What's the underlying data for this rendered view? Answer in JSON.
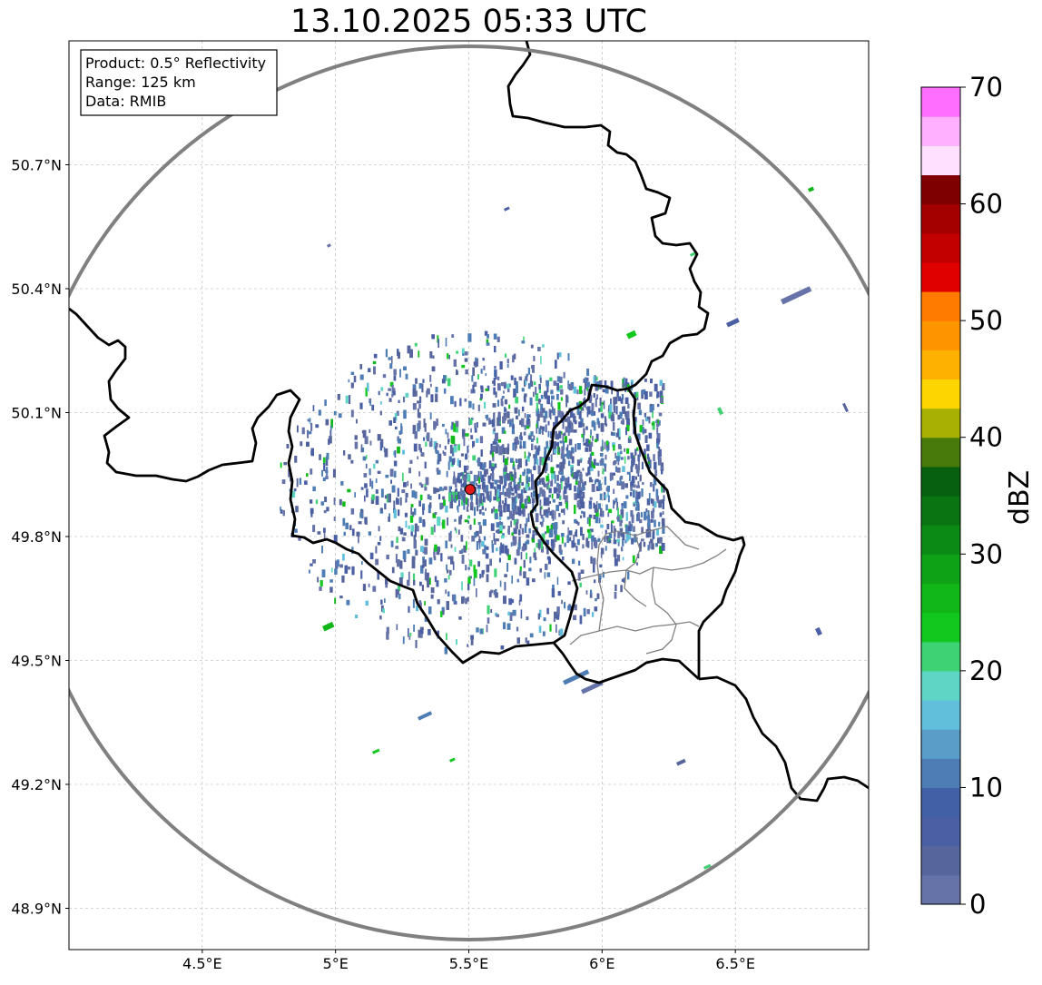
{
  "title": "13.10.2025 05:33 UTC",
  "info_box": {
    "product": "Product: 0.5° Reflectivity",
    "range": "Range: 125 km",
    "data": "Data: RMIB"
  },
  "map": {
    "lon_range": [
      4.0,
      7.0
    ],
    "lat_range": [
      48.8,
      51.0
    ],
    "x_ticks": [
      {
        "value": 4.5,
        "label": "4.5°E"
      },
      {
        "value": 5.0,
        "label": "5°E"
      },
      {
        "value": 5.5,
        "label": "5.5°E"
      },
      {
        "value": 6.0,
        "label": "6°E"
      },
      {
        "value": 6.5,
        "label": "6.5°E"
      }
    ],
    "y_ticks": [
      {
        "value": 48.9,
        "label": "48.9°N"
      },
      {
        "value": 49.2,
        "label": "49.2°N"
      },
      {
        "value": 49.5,
        "label": "49.5°N"
      },
      {
        "value": 49.8,
        "label": "49.8°N"
      },
      {
        "value": 50.1,
        "label": "50.1°N"
      },
      {
        "value": 50.4,
        "label": "50.4°N"
      },
      {
        "value": 50.7,
        "label": "50.7°N"
      }
    ],
    "radar_site": {
      "lon": 5.505,
      "lat": 49.914,
      "color": "#e31a1c"
    },
    "range_ring_color": "#808080",
    "border_color": "#000000",
    "admin_border_color": "#808080",
    "grid_color": "#b0b0b0"
  },
  "colorbar": {
    "label": "dBZ",
    "min": 0,
    "max": 70,
    "step": 2.5,
    "tick_labels": [
      "0",
      "10",
      "20",
      "30",
      "40",
      "50",
      "60",
      "70"
    ],
    "tick_values": [
      0,
      10,
      20,
      30,
      40,
      50,
      60,
      70
    ],
    "colors": [
      "#6673a8",
      "#56669d",
      "#4a5fa4",
      "#4260a6",
      "#4e7db5",
      "#5a9dc8",
      "#61bfdc",
      "#5fd5c5",
      "#3ed274",
      "#12c71e",
      "#11b718",
      "#0ea317",
      "#0b8b15",
      "#0a7413",
      "#075f10",
      "#477a0b",
      "#a8b004",
      "#fdd500",
      "#feb100",
      "#fe9500",
      "#ff7b00",
      "#e00000",
      "#c20000",
      "#a40000",
      "#7f0000",
      "#ffe1ff",
      "#ffb1ff",
      "#ff6eff",
      "#ee35ee"
    ]
  }
}
